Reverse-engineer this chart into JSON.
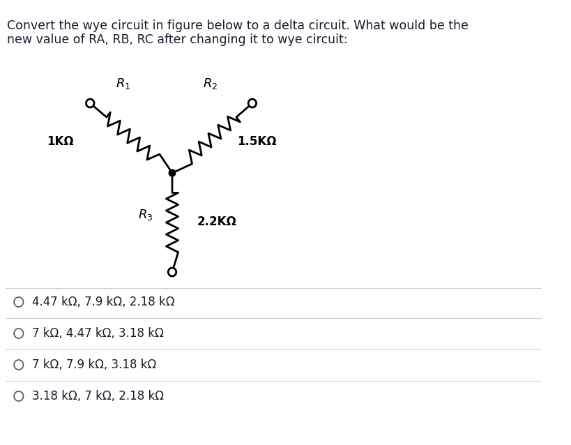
{
  "title_line1": "Convert the wye circuit in figure below to a delta circuit. What would be the",
  "title_line2": "new value of RA, RB, RC after changing it to wye circuit:",
  "R1_label": "R_1",
  "R2_label": "R_2",
  "R3_label": "R_3",
  "R1_value": "1KΩ",
  "R2_value": "1.5KΩ",
  "R3_value": "2.2KΩ",
  "options": [
    "4.47 kΩ, 7.9 kΩ, 2.18 kΩ",
    "7 kΩ, 4.47 kΩ, 3.18 kΩ",
    "7 kΩ, 7.9 kΩ, 3.18 kΩ",
    "3.18 kΩ, 7 kΩ, 2.18 kΩ"
  ],
  "bg_color": "#ffffff",
  "text_color": "#1a1a2e",
  "line_color": "#000000"
}
